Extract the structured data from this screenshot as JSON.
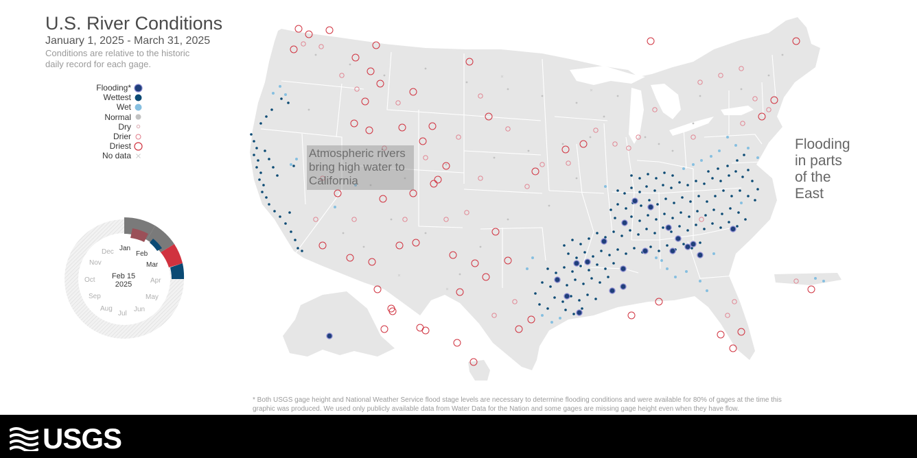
{
  "header": {
    "title": "U.S. River Conditions",
    "date_range": "January 1, 2025 - March 31, 2025",
    "subtitle": "Conditions are relative to the historic daily record for each gage."
  },
  "legend": {
    "items": [
      {
        "label": "Flooding*",
        "symbol": "flooding",
        "color": "#1f3f7a"
      },
      {
        "label": "Wettest",
        "symbol": "wettest",
        "color": "#0b4a74"
      },
      {
        "label": "Wet",
        "symbol": "wet",
        "color": "#86bfe0"
      },
      {
        "label": "Normal",
        "symbol": "normal",
        "color": "#c2c2c2"
      },
      {
        "label": "Dry",
        "symbol": "dry",
        "color": "#d8a8b0"
      },
      {
        "label": "Drier",
        "symbol": "drier",
        "color": "#e07a88"
      },
      {
        "label": "Driest",
        "symbol": "driest",
        "color": "#d0323f"
      },
      {
        "label": "No data",
        "symbol": "no-data",
        "color": "#cccccc"
      }
    ]
  },
  "annotations": {
    "west": "Atmospheric rivers bring high water to California",
    "east": [
      "Flooding",
      "in parts",
      "of the",
      "East"
    ]
  },
  "dial": {
    "current_date_line1": "Feb 15",
    "current_date_line2": "2025",
    "months": [
      "Jan",
      "Feb",
      "Mar",
      "Apr",
      "May",
      "Jun",
      "Jul",
      "Aug",
      "Sep",
      "Oct",
      "Nov",
      "Dec"
    ],
    "active_months": [
      "Jan",
      "Feb",
      "Mar"
    ]
  },
  "footnote": "* Both USGS gage height and National Weather Service flood stage levels are necessary to determine flooding conditions and were available for 80% of gages at the time this graphic was produced. We used only publicly available data from Water Data for the Nation and some gages are missing gage height even when they have flow.",
  "footer": {
    "logo_text": "USGS"
  },
  "colors": {
    "flooding": "#1f3f7a",
    "wettest": "#0b4a74",
    "wet": "#86bfe0",
    "normal": "#c2c2c2",
    "driest": "#d0323f",
    "drier": "#e07a88",
    "land": "#e6e6e6",
    "ocean": "#ffffff"
  }
}
